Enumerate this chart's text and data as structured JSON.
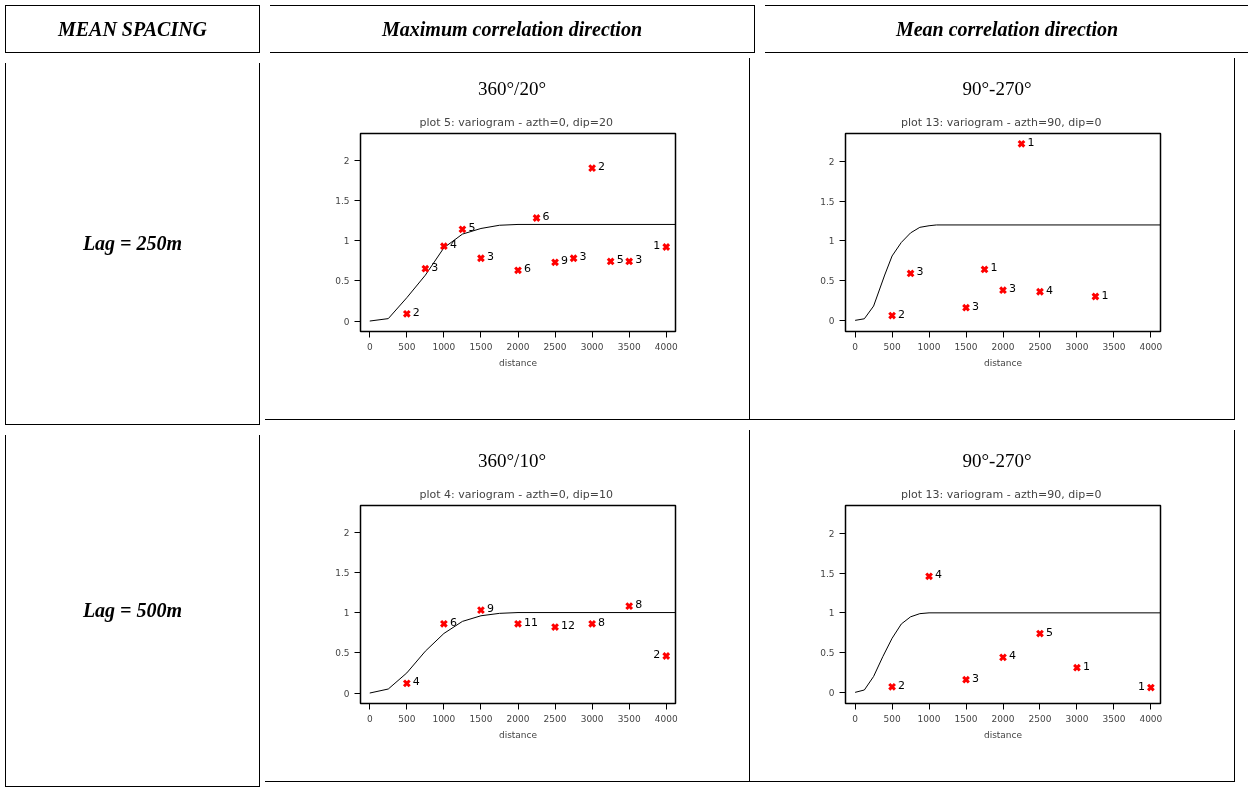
{
  "chart_data": [
    {
      "type": "other",
      "annotations": [
        "MEAN  SPACING",
        "Maximum correlation direction",
        "Mean correlation direction",
        "Lag = 250m",
        "Lag = 500m"
      ]
    },
    {
      "type": "scatter",
      "subtitle": "360°/20°",
      "title": "plot 5:  variogram - azth=0, dip=20",
      "xlabel": "distance",
      "xlim": [
        -125,
        4125
      ],
      "ylim": [
        -0.13,
        2.33
      ],
      "xticks": [
        0,
        500,
        1000,
        1500,
        2000,
        2500,
        3000,
        3500,
        4000
      ],
      "yticks": [
        0,
        0.5,
        1,
        1.5,
        2
      ],
      "grid": false,
      "series": [
        {
          "type": "line",
          "color": "#000000",
          "marker": "none",
          "x": [
            0,
            250,
            500,
            750,
            1000,
            1250,
            1500,
            1750,
            2000,
            4125
          ],
          "values": [
            0,
            0.03,
            0.29,
            0.57,
            0.91,
            1.08,
            1.15,
            1.19,
            1.2,
            1.2
          ]
        },
        {
          "type": "scatter",
          "color": "#ff0000",
          "marker": "cross",
          "x": [
            500,
            750,
            1000,
            1250,
            1500,
            2000,
            2250,
            2500,
            2750,
            3000,
            3250,
            3500,
            4000
          ],
          "values": [
            0.09,
            0.65,
            0.93,
            1.14,
            0.78,
            0.63,
            1.28,
            0.73,
            0.78,
            1.9,
            0.74,
            0.74,
            0.92
          ]
        }
      ],
      "annotations": [
        {
          "text": "2",
          "x": 500,
          "y": 0.09
        },
        {
          "text": "3",
          "x": 750,
          "y": 0.65
        },
        {
          "text": "4",
          "x": 1000,
          "y": 0.93
        },
        {
          "text": "5",
          "x": 1250,
          "y": 1.14
        },
        {
          "text": "3",
          "x": 1500,
          "y": 0.78
        },
        {
          "text": "6",
          "x": 2000,
          "y": 0.63
        },
        {
          "text": "6",
          "x": 2250,
          "y": 1.28
        },
        {
          "text": "9",
          "x": 2500,
          "y": 0.73
        },
        {
          "text": "3",
          "x": 2750,
          "y": 0.78
        },
        {
          "text": "2",
          "x": 3000,
          "y": 1.9
        },
        {
          "text": "5",
          "x": 3250,
          "y": 0.74
        },
        {
          "text": "3",
          "x": 3500,
          "y": 0.74
        },
        {
          "text": "1",
          "x": 4000,
          "y": 0.92
        }
      ]
    },
    {
      "type": "scatter",
      "subtitle": "90°-270°",
      "title": "plot 13:  variogram - azth=90, dip=0",
      "xlabel": "distance",
      "xlim": [
        -130,
        4130
      ],
      "ylim": [
        -0.14,
        2.35
      ],
      "xticks": [
        0,
        500,
        1000,
        1500,
        2000,
        2500,
        3000,
        3500,
        4000
      ],
      "yticks": [
        0,
        0.5,
        1,
        1.5,
        2
      ],
      "grid": false,
      "series": [
        {
          "type": "line",
          "color": "#000000",
          "marker": "none",
          "x": [
            0,
            125,
            250,
            400,
            500,
            625,
            750,
            875,
            1000,
            1100,
            4130
          ],
          "values": [
            0,
            0.02,
            0.18,
            0.57,
            0.81,
            0.98,
            1.1,
            1.17,
            1.19,
            1.2,
            1.2
          ]
        },
        {
          "type": "scatter",
          "color": "#ff0000",
          "marker": "cross",
          "x": [
            500,
            750,
            1500,
            1750,
            2000,
            2250,
            2500,
            3250
          ],
          "values": [
            0.06,
            0.59,
            0.16,
            0.64,
            0.38,
            2.22,
            0.36,
            0.3
          ]
        }
      ],
      "annotations": [
        {
          "text": "2",
          "x": 500,
          "y": 0.06
        },
        {
          "text": "3",
          "x": 750,
          "y": 0.59
        },
        {
          "text": "3",
          "x": 1500,
          "y": 0.16
        },
        {
          "text": "1",
          "x": 1750,
          "y": 0.64
        },
        {
          "text": "3",
          "x": 2000,
          "y": 0.38
        },
        {
          "text": "1",
          "x": 2250,
          "y": 2.22
        },
        {
          "text": "4",
          "x": 2500,
          "y": 0.36
        },
        {
          "text": "1",
          "x": 3250,
          "y": 0.3
        }
      ]
    },
    {
      "type": "scatter",
      "subtitle": "360°/10°",
      "title": "plot 4:  variogram - azth=0, dip=10",
      "xlabel": "distance",
      "xlim": [
        -125,
        4125
      ],
      "ylim": [
        -0.13,
        2.33
      ],
      "xticks": [
        0,
        500,
        1000,
        1500,
        2000,
        2500,
        3000,
        3500,
        4000
      ],
      "yticks": [
        0,
        0.5,
        1,
        1.5,
        2
      ],
      "grid": false,
      "series": [
        {
          "type": "line",
          "color": "#000000",
          "marker": "none",
          "x": [
            0,
            250,
            500,
            750,
            1000,
            1250,
            1500,
            1750,
            2000,
            4125
          ],
          "values": [
            0,
            0.05,
            0.25,
            0.52,
            0.74,
            0.89,
            0.96,
            0.99,
            1.0,
            1.0
          ]
        },
        {
          "type": "scatter",
          "color": "#ff0000",
          "marker": "cross",
          "x": [
            500,
            1000,
            1500,
            2000,
            2500,
            3000,
            3500,
            4000
          ],
          "values": [
            0.12,
            0.86,
            1.03,
            0.86,
            0.82,
            0.86,
            1.08,
            0.46
          ]
        }
      ],
      "annotations": [
        {
          "text": "4",
          "x": 500,
          "y": 0.12
        },
        {
          "text": "6",
          "x": 1000,
          "y": 0.86
        },
        {
          "text": "9",
          "x": 1500,
          "y": 1.03
        },
        {
          "text": "11",
          "x": 2000,
          "y": 0.86
        },
        {
          "text": "12",
          "x": 2500,
          "y": 0.82
        },
        {
          "text": "8",
          "x": 3000,
          "y": 0.86
        },
        {
          "text": "8",
          "x": 3500,
          "y": 1.08
        },
        {
          "text": "2",
          "x": 4000,
          "y": 0.46
        }
      ]
    },
    {
      "type": "scatter",
      "subtitle": "90°-270°",
      "title": "plot 13:  variogram - azth=90, dip=0",
      "xlabel": "distance",
      "xlim": [
        -130,
        4130
      ],
      "ylim": [
        -0.14,
        2.35
      ],
      "xticks": [
        0,
        500,
        1000,
        1500,
        2000,
        2500,
        3000,
        3500,
        4000
      ],
      "yticks": [
        0,
        0.5,
        1,
        1.5,
        2
      ],
      "grid": false,
      "series": [
        {
          "type": "line",
          "color": "#000000",
          "marker": "none",
          "x": [
            0,
            125,
            250,
            375,
            500,
            625,
            750,
            875,
            1000,
            4130
          ],
          "values": [
            0,
            0.03,
            0.2,
            0.45,
            0.68,
            0.86,
            0.95,
            0.99,
            1.0,
            1.0
          ]
        },
        {
          "type": "scatter",
          "color": "#ff0000",
          "marker": "cross",
          "x": [
            500,
            1000,
            1500,
            2000,
            2500,
            3000,
            4000
          ],
          "values": [
            0.07,
            1.46,
            0.16,
            0.44,
            0.74,
            0.31,
            0.06
          ]
        }
      ],
      "annotations": [
        {
          "text": "2",
          "x": 500,
          "y": 0.07
        },
        {
          "text": "4",
          "x": 1000,
          "y": 1.46
        },
        {
          "text": "3",
          "x": 1500,
          "y": 0.16
        },
        {
          "text": "4",
          "x": 2000,
          "y": 0.44
        },
        {
          "text": "5",
          "x": 2500,
          "y": 0.74
        },
        {
          "text": "1",
          "x": 3000,
          "y": 0.31
        },
        {
          "text": "1",
          "x": 4000,
          "y": 0.06
        }
      ]
    }
  ]
}
